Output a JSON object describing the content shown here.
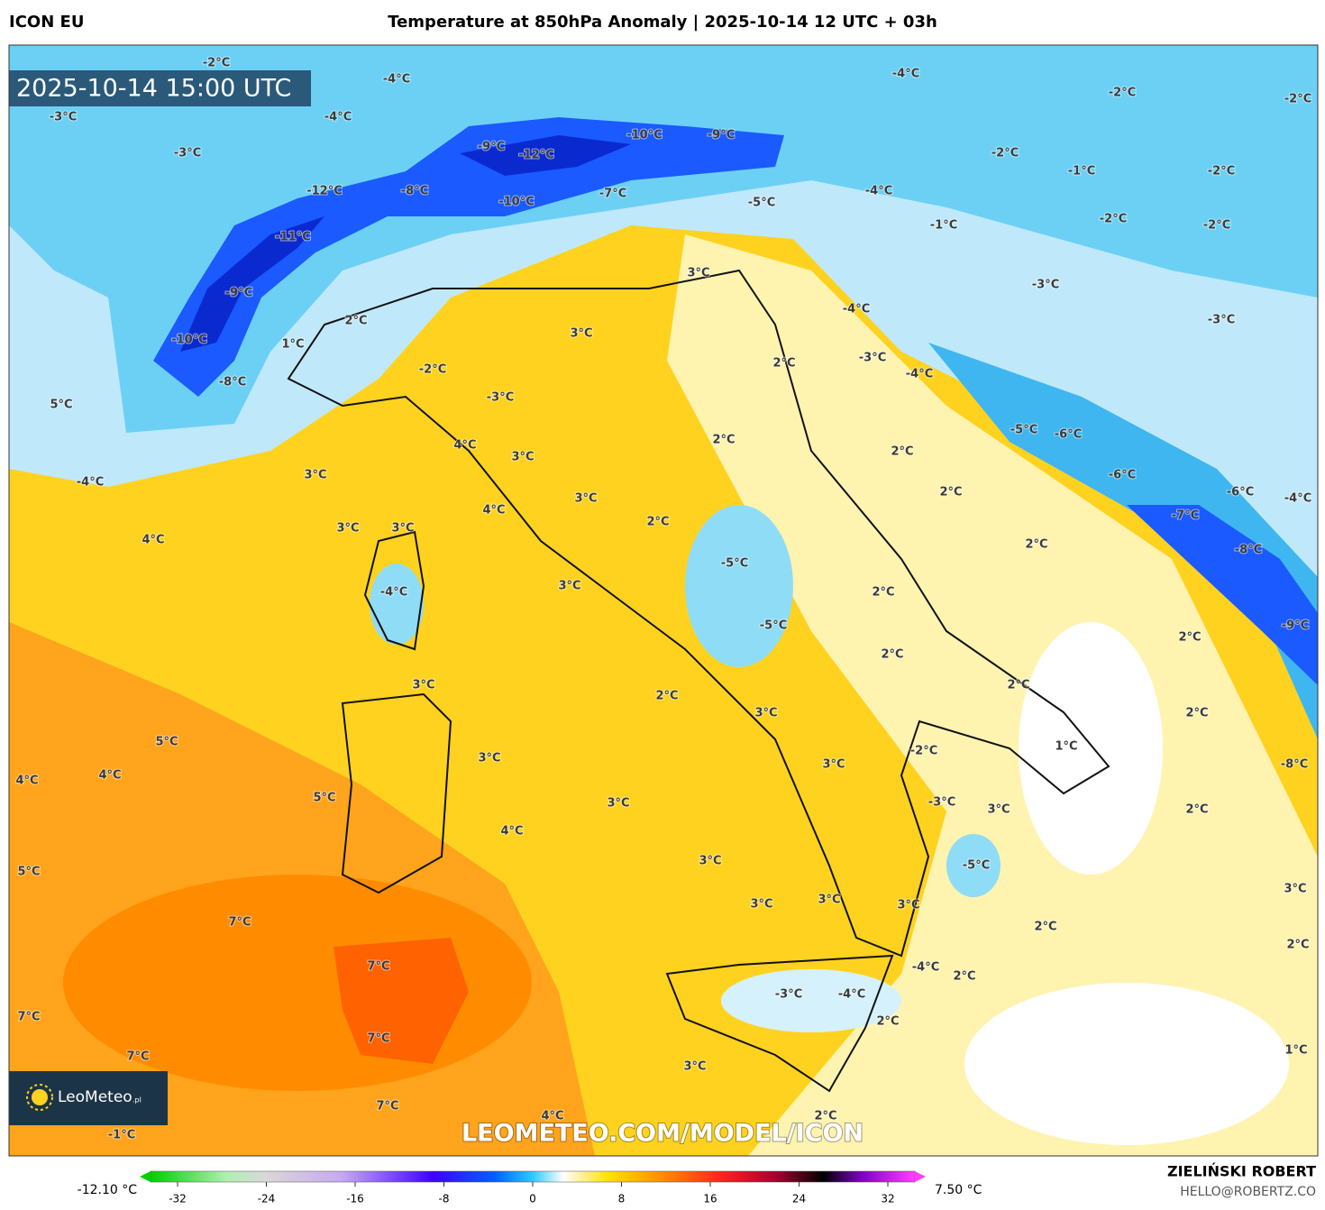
{
  "header": {
    "left": "ICON EU",
    "title": "Temperature at 850hPa Anomaly | 2025-10-14 12 UTC + 03h"
  },
  "map": {
    "timestamp": "2025-10-14 15:00 UTC",
    "watermark": "LEOMETEO.COM/MODEL/ICON",
    "logo": "LeoMeteo",
    "logo_suffix": ".pl",
    "labels": [
      "-2°C",
      "-4°C",
      "-4°C",
      "-3°C",
      "-4°C",
      "-2°C",
      "-2°C",
      "-9°C",
      "-12°C",
      "-10°C",
      "-9°C",
      "-3°C",
      "-2°C",
      "-1°C",
      "-2°C",
      "-12°C",
      "-8°C",
      "-10°C",
      "-7°C",
      "-5°C",
      "-4°C",
      "-2°C",
      "-1°C",
      "-2°C",
      "-11°C",
      "-9°C",
      "-3°C",
      "-4°C",
      "-3°C",
      "2°C",
      "3°C",
      "1°C",
      "3°C",
      "-10°C",
      "2°C",
      "-3°C",
      "-4°C",
      "-2°C",
      "-8°C",
      "-3°C",
      "5°C",
      "2°C",
      "4°C",
      "-5°C",
      "-6°C",
      "2°C",
      "3°C",
      "-4°C",
      "3°C",
      "-6°C",
      "2°C",
      "-6°C",
      "-4°C",
      "3°C",
      "4°C",
      "-7°C",
      "3°C",
      "3°C",
      "2°C",
      "4°C",
      "2°C",
      "-8°C",
      "-5°C",
      "-4°C",
      "2°C",
      "3°C",
      "-5°C",
      "-9°C",
      "2°C",
      "2°C",
      "3°C",
      "2°C",
      "2°C",
      "3°C",
      "2°C",
      "5°C",
      "1°C",
      "-2°C",
      "3°C",
      "4°C",
      "4°C",
      "3°C",
      "-8°C",
      "5°C",
      "3°C",
      "-3°C",
      "3°C",
      "2°C",
      "4°C",
      "3°C",
      "-5°C",
      "5°C",
      "3°C",
      "3°C",
      "3°C",
      "3°C",
      "7°C",
      "2°C",
      "2°C",
      "7°C",
      "-4°C",
      "2°C",
      "-3°C",
      "-4°C",
      "7°C",
      "7°C",
      "2°C",
      "7°C",
      "1°C",
      "3°C",
      "7°C",
      "4°C",
      "2°C",
      "-1°C"
    ]
  },
  "colorbar": {
    "min_label": "-12.10 °C",
    "max_label": "7.50 °C",
    "ticks": [
      -32,
      -24,
      -16,
      -8,
      0,
      8,
      16,
      24,
      32
    ]
  },
  "footer": {
    "author": "ZIELIŃSKI ROBERT",
    "email": "HELLO@ROBERTZ.CO"
  }
}
